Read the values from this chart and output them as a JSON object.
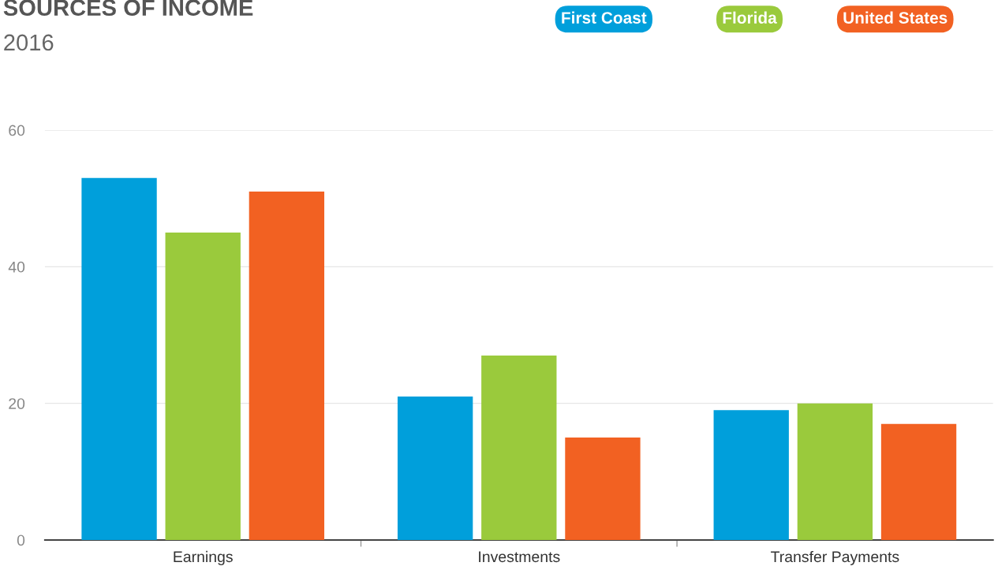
{
  "chart_data": {
    "type": "bar",
    "title": "SOURCES OF INCOME",
    "subtitle": "2016",
    "categories": [
      "Earnings",
      "Investments",
      "Transfer Payments"
    ],
    "series": [
      {
        "name": "First Coast",
        "color": "#009fdb",
        "values": [
          53,
          21,
          19
        ]
      },
      {
        "name": "Florida",
        "color": "#9aca3c",
        "values": [
          45,
          27,
          20
        ]
      },
      {
        "name": "United States",
        "color": "#f26122",
        "values": [
          51,
          15,
          17
        ]
      }
    ],
    "ylim": [
      0,
      60
    ],
    "yticks": [
      0,
      20,
      40,
      60
    ],
    "grid": "y",
    "legend": "top right"
  }
}
